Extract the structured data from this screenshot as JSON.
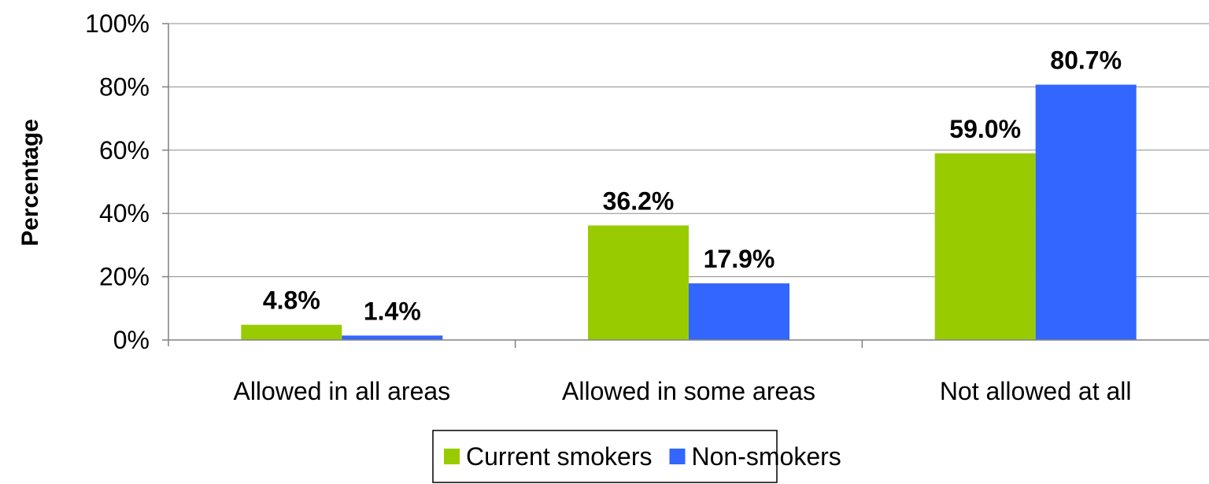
{
  "chart_data": {
    "type": "bar",
    "title": "",
    "xlabel": "",
    "ylabel": "Percentage",
    "ylim": [
      0,
      100
    ],
    "yticks": [
      0,
      20,
      40,
      60,
      80,
      100
    ],
    "ytick_suffix": "%",
    "grid": true,
    "legend_position": "bottom",
    "categories": [
      "Allowed in all areas",
      "Allowed in some areas",
      "Not allowed at all"
    ],
    "series": [
      {
        "name": "Current smokers",
        "color": "#99CC00",
        "values": [
          4.8,
          36.2,
          59.0
        ],
        "labels": [
          "4.8%",
          "36.2%",
          "59.0%"
        ]
      },
      {
        "name": "Non-smokers",
        "color": "#3366FF",
        "values": [
          1.4,
          17.9,
          80.7
        ],
        "labels": [
          "1.4%",
          "17.9%",
          "80.7%"
        ]
      }
    ]
  }
}
